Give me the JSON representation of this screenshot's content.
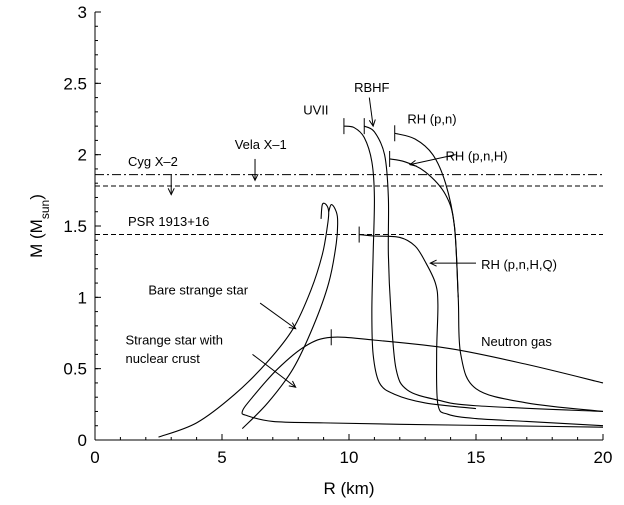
{
  "chart_data": {
    "type": "line",
    "xlabel": "R (km)",
    "ylabel_main": "M (M",
    "ylabel_sub": "sun",
    "ylabel_close": ")",
    "xlim": [
      0,
      20
    ],
    "ylim": [
      0,
      3
    ],
    "x_ticks": [
      "0",
      "5",
      "10",
      "15",
      "20"
    ],
    "y_ticks": [
      "0",
      "0.5",
      "1",
      "1.5",
      "2",
      "2.5",
      "3"
    ],
    "grid": false,
    "reference_lines": [
      {
        "name": "Cyg X-2",
        "y": 1.86,
        "style": "dashdot"
      },
      {
        "name": "Vela X-1",
        "y": 1.78,
        "style": "dashed"
      },
      {
        "name": "PSR 1913+16",
        "y": 1.44,
        "style": "dashed"
      }
    ],
    "series": [
      {
        "name": "UVII",
        "points": [
          [
            15.0,
            0.22
          ],
          [
            13.0,
            0.26
          ],
          [
            11.8,
            0.32
          ],
          [
            11.2,
            0.4
          ],
          [
            10.95,
            0.6
          ],
          [
            10.9,
            0.9
          ],
          [
            10.95,
            1.3
          ],
          [
            11.0,
            1.7
          ],
          [
            10.9,
            1.95
          ],
          [
            10.6,
            2.12
          ],
          [
            10.2,
            2.19
          ],
          [
            9.8,
            2.2
          ]
        ],
        "max_mass_marker": [
          9.8,
          2.2
        ]
      },
      {
        "name": "RBHF",
        "points": [
          [
            20.0,
            0.2
          ],
          [
            15.0,
            0.24
          ],
          [
            13.5,
            0.28
          ],
          [
            12.3,
            0.35
          ],
          [
            11.85,
            0.5
          ],
          [
            11.65,
            0.9
          ],
          [
            11.55,
            1.3
          ],
          [
            11.55,
            1.7
          ],
          [
            11.4,
            2.0
          ],
          [
            11.0,
            2.16
          ],
          [
            10.6,
            2.2
          ]
        ],
        "max_mass_marker": [
          10.6,
          2.2
        ]
      },
      {
        "name": "RH (p,n)",
        "points": [
          [
            20.0,
            0.2
          ],
          [
            17.0,
            0.26
          ],
          [
            15.0,
            0.36
          ],
          [
            14.4,
            0.6
          ],
          [
            14.3,
            1.0
          ],
          [
            14.15,
            1.5
          ],
          [
            13.8,
            1.8
          ],
          [
            13.3,
            2.0
          ],
          [
            12.6,
            2.11
          ],
          [
            11.8,
            2.15
          ]
        ],
        "max_mass_marker": [
          11.8,
          2.15
        ]
      },
      {
        "name": "RH (p,n,H)",
        "points": [
          [
            14.3,
            1.0
          ],
          [
            14.15,
            1.5
          ],
          [
            13.8,
            1.72
          ],
          [
            13.0,
            1.88
          ],
          [
            12.2,
            1.95
          ],
          [
            11.6,
            1.97
          ]
        ],
        "max_mass_marker": [
          11.6,
          1.97
        ]
      },
      {
        "name": "RH (p,n,H,Q)",
        "points": [
          [
            20.0,
            0.1
          ],
          [
            17.0,
            0.13
          ],
          [
            15.0,
            0.15
          ],
          [
            13.9,
            0.18
          ],
          [
            13.5,
            0.25
          ],
          [
            13.45,
            0.6
          ],
          [
            13.5,
            0.95
          ],
          [
            13.4,
            1.1
          ],
          [
            13.0,
            1.25
          ],
          [
            12.6,
            1.36
          ],
          [
            12.0,
            1.42
          ],
          [
            11.0,
            1.43
          ],
          [
            10.4,
            1.44
          ]
        ],
        "max_mass_marker": [
          10.4,
          1.44
        ]
      },
      {
        "name": "Neutron gas",
        "points": [
          [
            20.0,
            0.09
          ],
          [
            16.0,
            0.1
          ],
          [
            12.0,
            0.11
          ],
          [
            9.0,
            0.12
          ],
          [
            7.0,
            0.13
          ],
          [
            6.0,
            0.17
          ],
          [
            5.8,
            0.2
          ],
          [
            6.2,
            0.3
          ],
          [
            7.2,
            0.5
          ],
          [
            8.3,
            0.66
          ],
          [
            9.3,
            0.72
          ],
          [
            11.0,
            0.7
          ],
          [
            14.0,
            0.64
          ],
          [
            17.0,
            0.53
          ],
          [
            20.0,
            0.4
          ]
        ],
        "max_mass_marker": [
          9.3,
          0.72
        ]
      },
      {
        "name": "Bare strange star",
        "points": [
          [
            2.5,
            0.02
          ],
          [
            4.0,
            0.12
          ],
          [
            5.5,
            0.32
          ],
          [
            6.8,
            0.55
          ],
          [
            7.8,
            0.78
          ],
          [
            8.5,
            1.05
          ],
          [
            8.95,
            1.3
          ],
          [
            9.15,
            1.5
          ],
          [
            9.2,
            1.6
          ],
          [
            9.1,
            1.65
          ],
          [
            8.95,
            1.65
          ],
          [
            8.9,
            1.55
          ]
        ]
      },
      {
        "name": "Strange star with nuclear crust",
        "points": [
          [
            5.8,
            0.08
          ],
          [
            6.8,
            0.26
          ],
          [
            7.8,
            0.5
          ],
          [
            8.6,
            0.8
          ],
          [
            9.2,
            1.1
          ],
          [
            9.5,
            1.38
          ],
          [
            9.55,
            1.55
          ],
          [
            9.45,
            1.62
          ],
          [
            9.3,
            1.65
          ],
          [
            9.2,
            1.6
          ]
        ]
      }
    ],
    "annotations": [
      {
        "text": "UVII",
        "x": 8.2,
        "y": 2.28
      },
      {
        "text": "RBHF",
        "x": 10.2,
        "y": 2.44
      },
      {
        "text": "RH (p,n)",
        "x": 12.3,
        "y": 2.22
      },
      {
        "text": "RH (p,n,H)",
        "x": 13.8,
        "y": 1.96
      },
      {
        "text": "RH (p,n,H,Q)",
        "x": 15.2,
        "y": 1.2
      },
      {
        "text": "Neutron gas",
        "x": 15.2,
        "y": 0.66
      },
      {
        "text": "Cyg X–2",
        "x": 1.3,
        "y": 1.92
      },
      {
        "text": "Vela X–1",
        "x": 5.5,
        "y": 2.04
      },
      {
        "text": "PSR 1913+16",
        "x": 1.3,
        "y": 1.5
      },
      {
        "text": "Bare strange star",
        "x": 2.1,
        "y": 1.02
      },
      {
        "text": "Strange star with",
        "x": 1.2,
        "y": 0.67
      },
      {
        "text": "nuclear crust",
        "x": 1.2,
        "y": 0.54
      }
    ],
    "arrows": [
      {
        "from": [
          10.8,
          2.4
        ],
        "to": [
          10.95,
          2.2
        ]
      },
      {
        "from": [
          3.0,
          1.86
        ],
        "to": [
          3.0,
          1.72
        ]
      },
      {
        "from": [
          6.3,
          1.97
        ],
        "to": [
          6.3,
          1.82
        ]
      },
      {
        "from": [
          14.2,
          2.0
        ],
        "to": [
          12.4,
          1.93
        ]
      },
      {
        "from": [
          15.0,
          1.24
        ],
        "to": [
          13.2,
          1.24
        ]
      },
      {
        "from": [
          6.5,
          0.96
        ],
        "to": [
          7.9,
          0.78
        ]
      },
      {
        "from": [
          6.2,
          0.6
        ],
        "to": [
          7.9,
          0.37
        ]
      }
    ]
  }
}
